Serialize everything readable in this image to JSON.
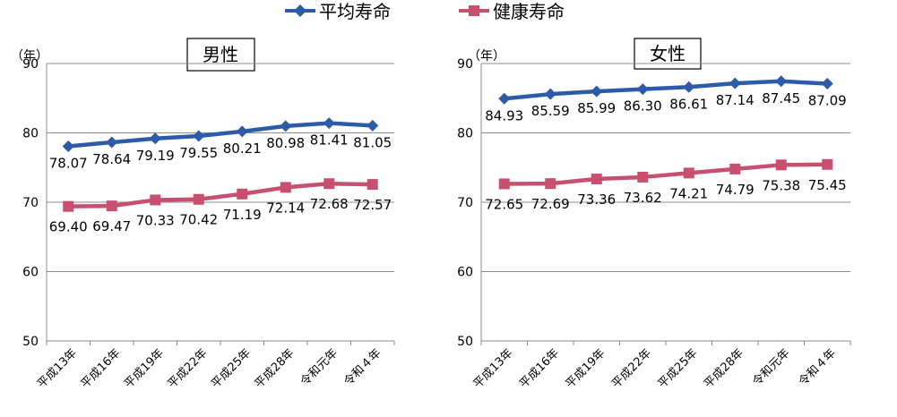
{
  "legend": [
    {
      "label": "平均寿命",
      "color": "#2E5BA8",
      "marker": "diamond"
    },
    {
      "label": "健康寿命",
      "color": "#C8506F",
      "marker": "square"
    }
  ],
  "chart_data": [
    {
      "type": "line",
      "title": "男性",
      "y_unit_label": "（年）",
      "categories": [
        "平成13年",
        "平成16年",
        "平成19年",
        "平成22年",
        "平成25年",
        "平成28年",
        "令和元年",
        "令和４年"
      ],
      "ylim": [
        50,
        90
      ],
      "yticks": [
        50,
        60,
        70,
        80,
        90
      ],
      "grid": true,
      "series": [
        {
          "name": "平均寿命",
          "color": "#2E5BA8",
          "marker": "diamond",
          "values": [
            78.07,
            78.64,
            79.19,
            79.55,
            80.21,
            80.98,
            81.41,
            81.05
          ],
          "labels": [
            "78.07",
            "78.64",
            "79.19",
            "79.55",
            "80.21",
            "80.98",
            "81.41",
            "81.05"
          ]
        },
        {
          "name": "健康寿命",
          "color": "#C8506F",
          "marker": "square",
          "values": [
            69.4,
            69.47,
            70.33,
            70.42,
            71.19,
            72.14,
            72.68,
            72.57
          ],
          "labels": [
            "69.40",
            "69.47",
            "70.33",
            "70.42",
            "71.19",
            "72.14",
            "72.68",
            "72.57"
          ]
        }
      ]
    },
    {
      "type": "line",
      "title": "女性",
      "y_unit_label": "（年）",
      "categories": [
        "平成13年",
        "平成16年",
        "平成19年",
        "平成22年",
        "平成25年",
        "平成28年",
        "令和元年",
        "令和４年"
      ],
      "ylim": [
        50,
        90
      ],
      "yticks": [
        50,
        60,
        70,
        80,
        90
      ],
      "grid": true,
      "series": [
        {
          "name": "平均寿命",
          "color": "#2E5BA8",
          "marker": "diamond",
          "values": [
            84.93,
            85.59,
            85.99,
            86.3,
            86.61,
            87.14,
            87.45,
            87.09
          ],
          "labels": [
            "84.93",
            "85.59",
            "85.99",
            "86.30",
            "86.61",
            "87.14",
            "87.45",
            "87.09"
          ]
        },
        {
          "name": "健康寿命",
          "color": "#C8506F",
          "marker": "square",
          "values": [
            72.65,
            72.69,
            73.36,
            73.62,
            74.21,
            74.79,
            75.38,
            75.45
          ],
          "labels": [
            "72.65",
            "72.69",
            "73.36",
            "73.62",
            "74.21",
            "74.79",
            "75.38",
            "75.45"
          ]
        }
      ]
    }
  ]
}
